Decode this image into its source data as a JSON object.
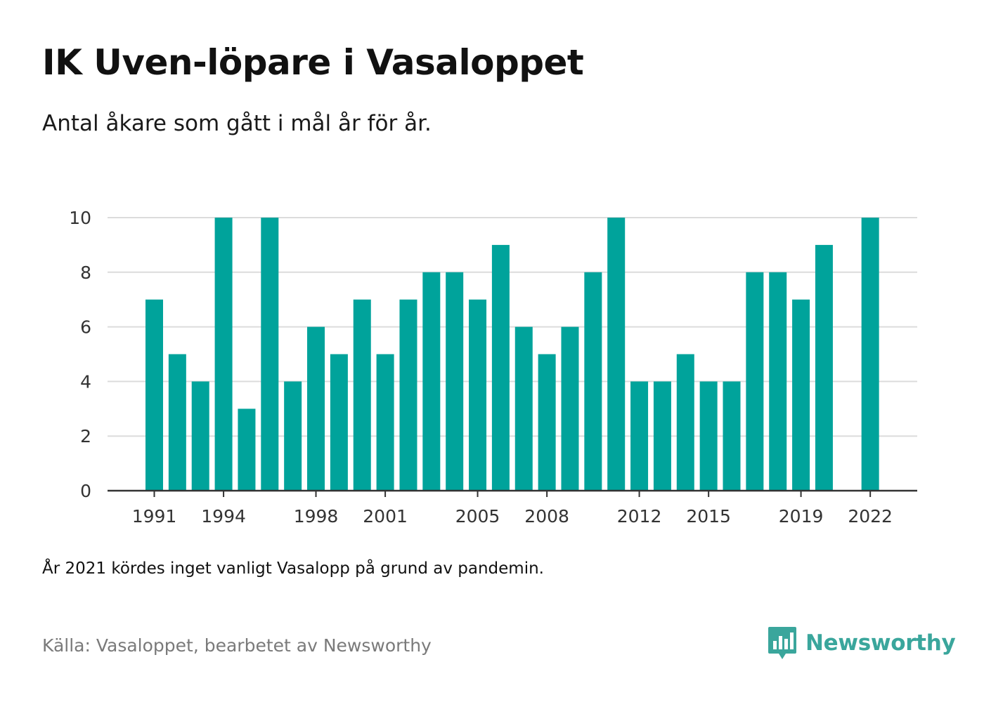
{
  "header": {
    "title": "IK Uven-löpare i Vasaloppet",
    "subtitle": "Antal åkare som gått i mål år för år."
  },
  "footer": {
    "note": "År 2021 kördes inget vanligt Vasalopp på grund av pandemin.",
    "source": "Källa: Vasaloppet, bearbetet av Newsworthy",
    "brand": "Newsworthy",
    "brand_icon": "newsworthy-logo-icon"
  },
  "colors": {
    "bar": "#00a39b",
    "grid": "#dcdcdc",
    "axis": "#333333",
    "brand": "#3aa69c"
  },
  "chart_data": {
    "type": "bar",
    "title": "IK Uven-löpare i Vasaloppet",
    "subtitle": "Antal åkare som gått i mål år för år.",
    "xlabel": "",
    "ylabel": "",
    "ylim": [
      0,
      10
    ],
    "yticks": [
      0,
      2,
      4,
      6,
      8,
      10
    ],
    "xticks": [
      "1991",
      "1994",
      "1998",
      "2001",
      "2005",
      "2008",
      "2012",
      "2015",
      "2019",
      "2022"
    ],
    "grid": true,
    "legend": "none",
    "categories": [
      1991,
      1992,
      1993,
      1994,
      1995,
      1996,
      1997,
      1998,
      1999,
      2000,
      2001,
      2002,
      2003,
      2004,
      2005,
      2006,
      2007,
      2008,
      2009,
      2010,
      2011,
      2012,
      2013,
      2014,
      2015,
      2016,
      2017,
      2018,
      2019,
      2020,
      2021,
      2022
    ],
    "values": [
      7,
      5,
      4,
      10,
      3,
      10,
      4,
      6,
      5,
      7,
      5,
      7,
      8,
      8,
      7,
      9,
      6,
      5,
      6,
      8,
      10,
      4,
      4,
      5,
      4,
      4,
      8,
      8,
      7,
      9,
      null,
      10
    ]
  }
}
